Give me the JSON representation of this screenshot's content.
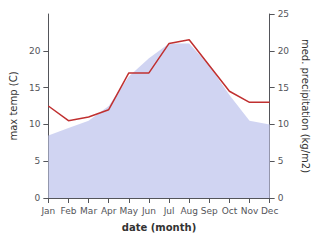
{
  "chart_data": {
    "type": "line",
    "xlabel": "date (month)",
    "ylabel": "max temp (C)",
    "y2label": "med. precipitation (kg/m2)",
    "categories": [
      "Jan",
      "Feb",
      "Mar",
      "Apr",
      "May",
      "Jun",
      "Jul",
      "Aug",
      "Sep",
      "Oct",
      "Nov",
      "Dec"
    ],
    "series": [
      {
        "type": "area",
        "color": "#c8ccf0",
        "values": [
          8.5,
          9.5,
          10.5,
          12.5,
          16.5,
          19.0,
          21.0,
          21.0,
          18.0,
          14.0,
          10.5,
          10.0
        ]
      },
      {
        "type": "line",
        "color": "#c03030",
        "axis": "y2",
        "values": [
          12.5,
          10.5,
          11.0,
          12.0,
          17.0,
          17.0,
          21.0,
          21.5,
          18.0,
          14.5,
          13.0,
          13.0
        ]
      }
    ],
    "ylim": [
      0,
      25
    ],
    "yticks": [
      0,
      5,
      10,
      15,
      20
    ],
    "y2lim": [
      0,
      25
    ],
    "y2ticks": [
      0,
      5,
      10,
      15,
      20,
      25
    ],
    "grid": false
  }
}
